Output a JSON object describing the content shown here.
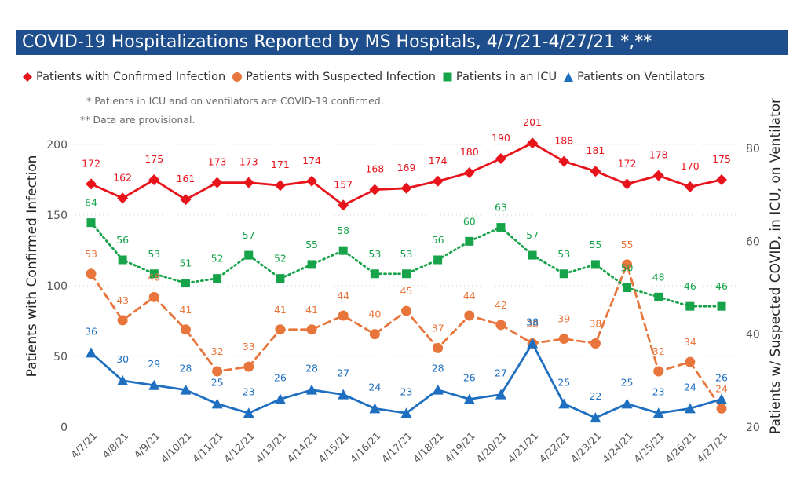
{
  "title": "COVID-19 Hospitalizations Reported by MS Hospitals, 4/7/21-4/27/21 *,**",
  "notes": [
    "* Patients in ICU and on ventilators are COVID-19 confirmed.",
    "** Data are provisional."
  ],
  "chart_data": {
    "type": "line",
    "title": "COVID-19 Hospitalizations Reported by MS Hospitals, 4/7/21-4/27/21 *,**",
    "ylabel": "Patients with Confirmed Infection",
    "y2label": "Patients w/ Suspected COVID, in ICU, on Ventilator",
    "ylim": [
      0,
      200
    ],
    "y2lim": [
      20,
      80
    ],
    "yticks": [
      0,
      50,
      100,
      150,
      200
    ],
    "y2ticks": [
      20,
      40,
      60,
      80
    ],
    "grid": true,
    "legend": "top-left",
    "x": [
      "4/7/21",
      "4/8/21",
      "4/9/21",
      "4/10/21",
      "4/11/21",
      "4/12/21",
      "4/13/21",
      "4/14/21",
      "4/15/21",
      "4/16/21",
      "4/17/21",
      "4/18/21",
      "4/19/21",
      "4/20/21",
      "4/21/21",
      "4/22/21",
      "4/23/21",
      "4/24/21",
      "4/25/21",
      "4/26/21",
      "4/27/21"
    ],
    "series": [
      {
        "name": "Patients with Confirmed Infection",
        "axis": "left",
        "color": "#e8141c",
        "marker": "diamond",
        "dash": "solid",
        "values": [
          172,
          162,
          175,
          161,
          173,
          173,
          171,
          174,
          157,
          168,
          169,
          174,
          180,
          190,
          201,
          188,
          181,
          172,
          178,
          170,
          175
        ]
      },
      {
        "name": "Patients with Suspected Infection",
        "axis": "right",
        "color": "#e8763c",
        "marker": "circle",
        "dash": "dashed",
        "values": [
          53,
          43,
          48,
          41,
          32,
          33,
          41,
          41,
          44,
          40,
          45,
          37,
          44,
          42,
          38,
          39,
          38,
          55,
          32,
          34,
          24
        ]
      },
      {
        "name": "Patients in an ICU",
        "axis": "right",
        "color": "#17a34a",
        "marker": "square",
        "dash": "dotted",
        "values": [
          64,
          56,
          53,
          51,
          52,
          57,
          52,
          55,
          58,
          53,
          53,
          56,
          60,
          63,
          57,
          53,
          55,
          50,
          48,
          46,
          46
        ]
      },
      {
        "name": "Patients on Ventilators",
        "axis": "right",
        "color": "#1f6fc0",
        "marker": "triangle",
        "dash": "solid",
        "values": [
          36,
          30,
          29,
          28,
          25,
          23,
          26,
          28,
          27,
          24,
          23,
          28,
          26,
          27,
          38,
          25,
          22,
          25,
          23,
          24,
          26
        ]
      }
    ]
  }
}
